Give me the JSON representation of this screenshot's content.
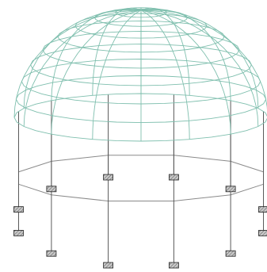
{
  "colors": {
    "background": "#ffffff",
    "dome_wire": "#7fbfae",
    "column": "#5a5a5a",
    "ring_beam": "#8a8a8a",
    "support_fill": "#c8c8c8",
    "support_hatch": "#555555"
  },
  "structure": {
    "type": "dome-on-columns",
    "dome_meridians": 16,
    "dome_rings": 9,
    "columns": 12,
    "supports": 12
  }
}
